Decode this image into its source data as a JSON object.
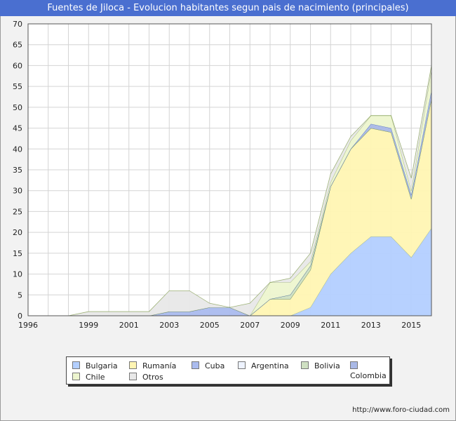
{
  "title": "Fuentes de Jiloca - Evolucion habitantes segun pais de nacimiento (principales)",
  "footer": "http://www.foro-ciudad.com",
  "colors": {
    "Bulgaria": "#b3cfff",
    "Rumanía": "#fff5b3",
    "Cuba": "#aabbee",
    "Argentina": "#eef3ff",
    "Bolivia": "#cfe0c2",
    "Colombia": "#a9b8e6",
    "Chile": "#edf5cf",
    "Otros": "#e8e8e8"
  },
  "chart_data": {
    "type": "area",
    "stacked": true,
    "title": "Fuentes de Jiloca - Evolucion habitantes segun pais de nacimiento (principales)",
    "xlim": [
      1996,
      2016
    ],
    "ylim": [
      0,
      70
    ],
    "x_ticks": [
      1996,
      1999,
      2001,
      2003,
      2005,
      2007,
      2009,
      2011,
      2013,
      2015
    ],
    "y_ticks": [
      0,
      5,
      10,
      15,
      20,
      25,
      30,
      35,
      40,
      45,
      50,
      55,
      60,
      65,
      70
    ],
    "grid": true,
    "legend_position": "bottom",
    "x": [
      1998,
      1999,
      2000,
      2001,
      2002,
      2003,
      2004,
      2005,
      2006,
      2007,
      2008,
      2009,
      2010,
      2011,
      2012,
      2013,
      2014,
      2015,
      2016
    ],
    "series": [
      {
        "name": "Bulgaria",
        "values": [
          0,
          0,
          0,
          0,
          0,
          0,
          0,
          0,
          0,
          0,
          0,
          0,
          2,
          10,
          15,
          19,
          19,
          14,
          21
        ]
      },
      {
        "name": "Rumanía",
        "values": [
          0,
          0,
          0,
          0,
          0,
          0,
          0,
          0,
          0,
          0,
          4,
          4,
          9,
          21,
          25,
          26,
          25,
          14,
          31
        ]
      },
      {
        "name": "Cuba",
        "values": [
          0,
          0,
          0,
          0,
          0,
          1,
          1,
          2,
          2,
          0,
          0,
          0,
          0,
          0,
          0,
          0,
          0,
          0,
          0
        ]
      },
      {
        "name": "Argentina",
        "values": [
          0,
          0,
          0,
          0,
          0,
          0,
          0,
          0,
          0,
          0,
          0,
          0,
          0,
          0,
          0,
          0,
          0,
          0,
          0
        ]
      },
      {
        "name": "Bolivia",
        "values": [
          0,
          0,
          0,
          0,
          0,
          0,
          0,
          0,
          0,
          0,
          0,
          1,
          1,
          0,
          0,
          0,
          0,
          0,
          0
        ]
      },
      {
        "name": "Colombia",
        "values": [
          0,
          0,
          0,
          0,
          0,
          0,
          0,
          0,
          0,
          0,
          0,
          0,
          0,
          0,
          0,
          1,
          1,
          1,
          2
        ]
      },
      {
        "name": "Chile",
        "values": [
          0,
          0,
          0,
          0,
          0,
          0,
          0,
          0,
          0,
          0,
          4,
          3,
          1,
          1,
          2,
          2,
          3,
          1,
          5
        ]
      },
      {
        "name": "Otros",
        "values": [
          0,
          1,
          1,
          1,
          1,
          5,
          5,
          1,
          0,
          3,
          0,
          1,
          2,
          2,
          1,
          0,
          0,
          3,
          1
        ]
      }
    ]
  }
}
